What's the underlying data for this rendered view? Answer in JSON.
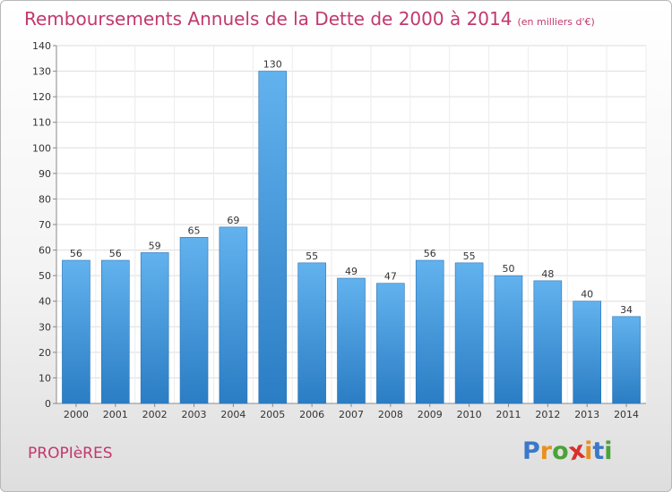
{
  "title": "Remboursements Annuels de la Dette de 2000 à 2014",
  "subtitle": "(en milliers d'€)",
  "commune": "PROPIèRES",
  "logo": {
    "letters": [
      "P",
      "r",
      "o",
      "x",
      "i",
      "t",
      "i"
    ],
    "colors": [
      "#3a78c9",
      "#e8901f",
      "#4aa23a",
      "#d8312b",
      "#e8901f",
      "#3a78c9",
      "#4aa23a"
    ]
  },
  "colors": {
    "bar_light": "#62b2ee",
    "bar_dark": "#2b7dc4",
    "title": "#c2386d"
  },
  "chart_data": {
    "type": "bar",
    "categories": [
      "2000",
      "2001",
      "2002",
      "2003",
      "2004",
      "2005",
      "2006",
      "2007",
      "2008",
      "2009",
      "2010",
      "2011",
      "2012",
      "2013",
      "2014"
    ],
    "values": [
      56,
      56,
      59,
      65,
      69,
      130,
      55,
      49,
      47,
      56,
      55,
      50,
      48,
      40,
      34
    ],
    "yticks": [
      0,
      10,
      20,
      30,
      40,
      50,
      60,
      70,
      80,
      90,
      100,
      110,
      120,
      130,
      140
    ],
    "ylim": [
      0,
      140
    ],
    "grid": true
  }
}
